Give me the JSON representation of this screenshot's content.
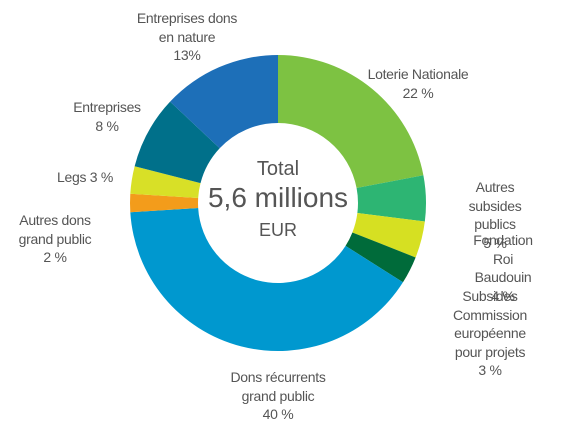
{
  "chart_data": {
    "type": "donut",
    "center_text": [
      "Total",
      "5,6 millions",
      "EUR"
    ],
    "categories": [
      "Loterie Nationale",
      "Autres subsides\npublics",
      "Fondation\nRoi Baudouin",
      "Subsides Commission\neuropéenne pour projets",
      "Dons récurrents\ngrand public",
      "Autres dons\ngrand public",
      "Legs",
      "Entreprises",
      "Entreprises dons\nen nature"
    ],
    "values": [
      22,
      5,
      4,
      3,
      40,
      2,
      3,
      8,
      13
    ],
    "value_labels": [
      "22 %",
      "5 %",
      "4 %",
      "3 %",
      "40 %",
      "2 %",
      "3 %",
      "8 %",
      "13%"
    ],
    "colors": [
      "#7dc242",
      "#2db573",
      "#d6e022",
      "#006b3a",
      "#0098cf",
      "#f39c1b",
      "#d8e027",
      "#00708a",
      "#1d6fb8"
    ]
  }
}
